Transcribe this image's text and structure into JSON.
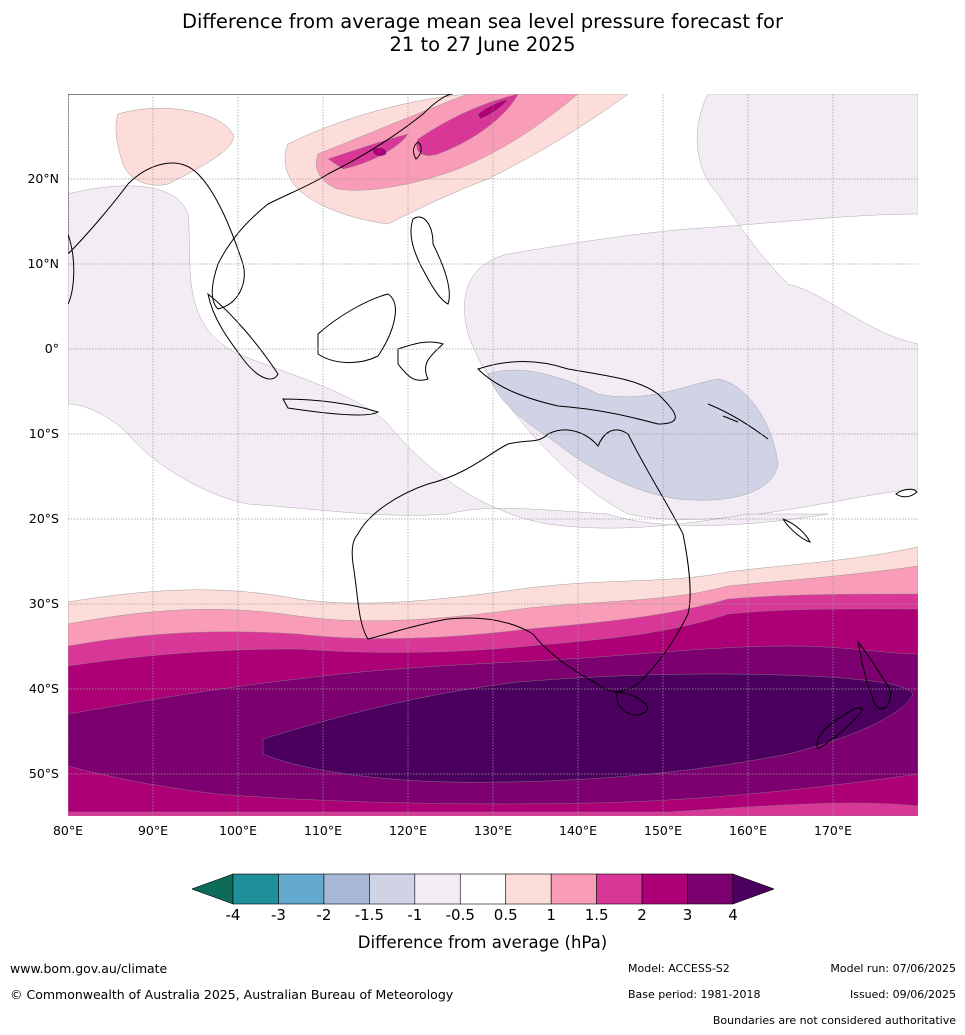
{
  "title": {
    "line1": "Difference from average mean sea level pressure forecast for",
    "line2": "21 to 27 June 2025"
  },
  "map": {
    "lat_labels": [
      "20°N",
      "10°N",
      "0°",
      "10°S",
      "20°S",
      "30°S",
      "40°S",
      "50°S"
    ],
    "lon_labels": [
      "80°E",
      "90°E",
      "100°E",
      "110°E",
      "120°E",
      "130°E",
      "140°E",
      "150°E",
      "160°E",
      "170°E"
    ],
    "extent": {
      "lon": [
        80,
        180
      ],
      "lat": [
        -55,
        30
      ]
    },
    "region": "Australia, Indian Ocean and Western Pacific"
  },
  "legend": {
    "title": "Difference from average (hPa)",
    "tick_labels": [
      "-4",
      "-3",
      "-2",
      "-1.5",
      "-1",
      "-0.5",
      "0.5",
      "1",
      "1.5",
      "2",
      "3",
      "4"
    ],
    "colors": [
      "#0d6b5a",
      "#1f8f99",
      "#63a9cf",
      "#a7b8d6",
      "#d0d2e6",
      "#f3ecf5",
      "#ffffff",
      "#fdddd9",
      "#f99cb8",
      "#d83797",
      "#ad0077",
      "#7d0070",
      "#4b0060"
    ]
  },
  "footer": {
    "website": "www.bom.gov.au/climate",
    "copyright": "© Commonwealth of Australia 2025, Australian Bureau of Meteorology",
    "model": "Model: ACCESS-S2",
    "base_period": "Base period: 1981-2018",
    "model_run": "Model run: 07/06/2025",
    "issued": "Issued: 09/06/2025",
    "disclaimer": "Boundaries are not considered authoritative"
  }
}
